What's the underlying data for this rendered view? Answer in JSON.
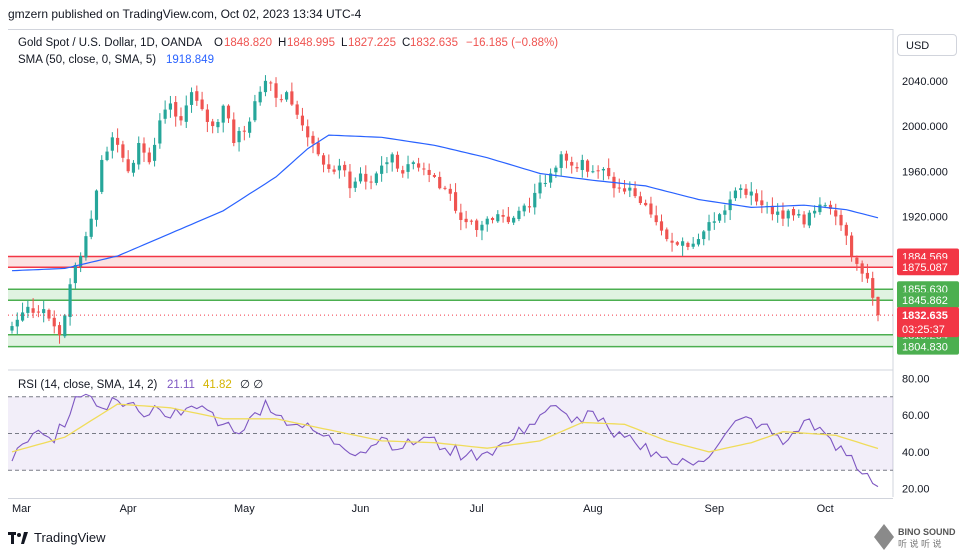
{
  "header": {
    "publish_line": "gmzern published on TradingView.com, Oct 02, 2023 13:34 UTC-4",
    "legend_main": {
      "symbol": "Gold Spot / U.S. Dollar, 1D, OANDA",
      "o_label": "O",
      "o_value": "1848.820",
      "h_label": "H",
      "h_value": "1848.995",
      "l_label": "L",
      "l_value": "1827.225",
      "c_label": "C",
      "c_value": "1832.635",
      "change": "−16.185 (−0.88%)"
    },
    "legend_sma": {
      "label": "SMA (50, close, 0, SMA, 5)",
      "value": "1918.849"
    },
    "legend_rsi": {
      "label": "RSI (14, close, SMA, 14, 2)",
      "value1": "21.11",
      "value2": "41.82",
      "extra": "∅ ∅"
    }
  },
  "currency_button": "USD",
  "footer": {
    "brand": "TradingView"
  },
  "watermark": {
    "line1": "BINO SOUND",
    "line2": "听 说 听 说"
  },
  "colors": {
    "up": "#26a69a",
    "down": "#ef5350",
    "sma": "#2962ff",
    "rsi_line": "#7e57c2",
    "rsi_ma": "#f0dc5a",
    "rsi_band": "#7e57c2",
    "resistance_fill": "#fbd9d9",
    "resistance_line": "#f23645",
    "support_fill": "#d8f0d9",
    "support_line": "#4caf50",
    "current_price_tag": "#f23645"
  },
  "chart_data": [
    {
      "type": "candlestick",
      "title": "Gold Spot / U.S. Dollar, 1D, OANDA",
      "ylim": [
        1785,
        2085
      ],
      "y_ticks": [
        "2040.000",
        "2000.000",
        "1960.000",
        "1920.000"
      ],
      "x_ticks": [
        "Mar",
        "Apr",
        "May",
        "Jun",
        "Jul",
        "Aug",
        "Sep",
        "Oct"
      ],
      "grid": false,
      "anchors": [
        {
          "i": 0,
          "c": 1823
        },
        {
          "i": 3,
          "c": 1840
        },
        {
          "i": 6,
          "c": 1838
        },
        {
          "i": 9,
          "c": 1815
        },
        {
          "i": 11,
          "c": 1860
        },
        {
          "i": 13,
          "c": 1885
        },
        {
          "i": 15,
          "c": 1918
        },
        {
          "i": 17,
          "c": 1970
        },
        {
          "i": 19,
          "c": 1990
        },
        {
          "i": 22,
          "c": 1960
        },
        {
          "i": 24,
          "c": 1985
        },
        {
          "i": 26,
          "c": 1968
        },
        {
          "i": 28,
          "c": 2005
        },
        {
          "i": 30,
          "c": 2020
        },
        {
          "i": 32,
          "c": 2005
        },
        {
          "i": 34,
          "c": 2030
        },
        {
          "i": 36,
          "c": 2015
        },
        {
          "i": 38,
          "c": 2000
        },
        {
          "i": 40,
          "c": 2018
        },
        {
          "i": 42,
          "c": 1985
        },
        {
          "i": 44,
          "c": 1995
        },
        {
          "i": 46,
          "c": 2022
        },
        {
          "i": 48,
          "c": 2040
        },
        {
          "i": 50,
          "c": 2025
        },
        {
          "i": 52,
          "c": 2030
        },
        {
          "i": 54,
          "c": 2010
        },
        {
          "i": 56,
          "c": 1990
        },
        {
          "i": 58,
          "c": 1975
        },
        {
          "i": 60,
          "c": 1962
        },
        {
          "i": 62,
          "c": 1965
        },
        {
          "i": 64,
          "c": 1945
        },
        {
          "i": 66,
          "c": 1958
        },
        {
          "i": 68,
          "c": 1950
        },
        {
          "i": 70,
          "c": 1965
        },
        {
          "i": 72,
          "c": 1975
        },
        {
          "i": 74,
          "c": 1958
        },
        {
          "i": 76,
          "c": 1968
        },
        {
          "i": 78,
          "c": 1962
        },
        {
          "i": 80,
          "c": 1955
        },
        {
          "i": 82,
          "c": 1945
        },
        {
          "i": 84,
          "c": 1925
        },
        {
          "i": 86,
          "c": 1915
        },
        {
          "i": 88,
          "c": 1908
        },
        {
          "i": 90,
          "c": 1918
        },
        {
          "i": 92,
          "c": 1922
        },
        {
          "i": 94,
          "c": 1915
        },
        {
          "i": 96,
          "c": 1925
        },
        {
          "i": 98,
          "c": 1928
        },
        {
          "i": 100,
          "c": 1950
        },
        {
          "i": 102,
          "c": 1958
        },
        {
          "i": 104,
          "c": 1975
        },
        {
          "i": 106,
          "c": 1965
        },
        {
          "i": 108,
          "c": 1970
        },
        {
          "i": 110,
          "c": 1960
        },
        {
          "i": 112,
          "c": 1962
        },
        {
          "i": 114,
          "c": 1945
        },
        {
          "i": 116,
          "c": 1942
        },
        {
          "i": 118,
          "c": 1938
        },
        {
          "i": 120,
          "c": 1930
        },
        {
          "i": 122,
          "c": 1915
        },
        {
          "i": 124,
          "c": 1900
        },
        {
          "i": 126,
          "c": 1895
        },
        {
          "i": 128,
          "c": 1893
        },
        {
          "i": 130,
          "c": 1900
        },
        {
          "i": 132,
          "c": 1915
        },
        {
          "i": 134,
          "c": 1922
        },
        {
          "i": 136,
          "c": 1935
        },
        {
          "i": 138,
          "c": 1945
        },
        {
          "i": 140,
          "c": 1942
        },
        {
          "i": 142,
          "c": 1930
        },
        {
          "i": 144,
          "c": 1922
        },
        {
          "i": 146,
          "c": 1918
        },
        {
          "i": 148,
          "c": 1921
        },
        {
          "i": 150,
          "c": 1913
        },
        {
          "i": 152,
          "c": 1925
        },
        {
          "i": 154,
          "c": 1930
        },
        {
          "i": 156,
          "c": 1920
        },
        {
          "i": 158,
          "c": 1903
        },
        {
          "i": 160,
          "c": 1878
        },
        {
          "i": 162,
          "c": 1865
        },
        {
          "i": 163,
          "c": 1848
        },
        {
          "i": 164,
          "c": 1832.635
        }
      ],
      "last_candle": {
        "o": 1848.82,
        "h": 1848.995,
        "l": 1827.225,
        "c": 1832.635
      },
      "sma_50": [
        {
          "i": 0,
          "v": 1872
        },
        {
          "i": 10,
          "v": 1874
        },
        {
          "i": 20,
          "v": 1885
        },
        {
          "i": 30,
          "v": 1905
        },
        {
          "i": 40,
          "v": 1925
        },
        {
          "i": 50,
          "v": 1955
        },
        {
          "i": 56,
          "v": 1980
        },
        {
          "i": 60,
          "v": 1992
        },
        {
          "i": 70,
          "v": 1990
        },
        {
          "i": 80,
          "v": 1983
        },
        {
          "i": 90,
          "v": 1972
        },
        {
          "i": 100,
          "v": 1958
        },
        {
          "i": 110,
          "v": 1952
        },
        {
          "i": 120,
          "v": 1947
        },
        {
          "i": 130,
          "v": 1935
        },
        {
          "i": 140,
          "v": 1928
        },
        {
          "i": 150,
          "v": 1930
        },
        {
          "i": 158,
          "v": 1926
        },
        {
          "i": 164,
          "v": 1918.849
        }
      ],
      "levels": [
        {
          "kind": "resistance",
          "top": 1884.569,
          "bottom": 1875.087,
          "label_top": "1884.569",
          "label_bottom": "1875.087"
        },
        {
          "kind": "support",
          "top": 1855.63,
          "bottom": 1845.862,
          "label_top": "1855.630",
          "label_bottom": "1845.862"
        },
        {
          "kind": "support",
          "top": 1815.264,
          "bottom": 1804.83,
          "label_top": "1815.264",
          "label_bottom": "1804.830"
        }
      ],
      "current_price": {
        "value": "1832.635",
        "countdown": "03:25:37"
      }
    },
    {
      "type": "line",
      "title": "RSI (14, close, SMA, 14, 2)",
      "ylim": [
        16,
        84
      ],
      "y_ticks": [
        "80.00",
        "60.00",
        "40.00",
        "20.00"
      ],
      "bands": [
        70,
        50,
        30
      ],
      "series": [
        {
          "points": [
            {
              "i": 0,
              "v": 35
            },
            {
              "i": 4,
              "v": 50
            },
            {
              "i": 8,
              "v": 45
            },
            {
              "i": 12,
              "v": 70
            },
            {
              "i": 16,
              "v": 65
            },
            {
              "i": 20,
              "v": 68
            },
            {
              "i": 24,
              "v": 62
            },
            {
              "i": 28,
              "v": 63
            },
            {
              "i": 32,
              "v": 60
            },
            {
              "i": 36,
              "v": 65
            },
            {
              "i": 40,
              "v": 55
            },
            {
              "i": 44,
              "v": 52
            },
            {
              "i": 48,
              "v": 68
            },
            {
              "i": 50,
              "v": 60
            },
            {
              "i": 54,
              "v": 55
            },
            {
              "i": 58,
              "v": 50
            },
            {
              "i": 62,
              "v": 44
            },
            {
              "i": 66,
              "v": 40
            },
            {
              "i": 70,
              "v": 48
            },
            {
              "i": 74,
              "v": 42
            },
            {
              "i": 78,
              "v": 48
            },
            {
              "i": 82,
              "v": 42
            },
            {
              "i": 86,
              "v": 38
            },
            {
              "i": 90,
              "v": 40
            },
            {
              "i": 94,
              "v": 45
            },
            {
              "i": 98,
              "v": 55
            },
            {
              "i": 102,
              "v": 65
            },
            {
              "i": 106,
              "v": 56
            },
            {
              "i": 110,
              "v": 62
            },
            {
              "i": 114,
              "v": 48
            },
            {
              "i": 118,
              "v": 45
            },
            {
              "i": 122,
              "v": 40
            },
            {
              "i": 126,
              "v": 33
            },
            {
              "i": 130,
              "v": 35
            },
            {
              "i": 134,
              "v": 45
            },
            {
              "i": 138,
              "v": 58
            },
            {
              "i": 142,
              "v": 55
            },
            {
              "i": 146,
              "v": 44
            },
            {
              "i": 150,
              "v": 57
            },
            {
              "i": 154,
              "v": 50
            },
            {
              "i": 158,
              "v": 38
            },
            {
              "i": 161,
              "v": 28
            },
            {
              "i": 164,
              "v": 21.11
            }
          ]
        },
        {
          "points": [
            {
              "i": 0,
              "v": 40
            },
            {
              "i": 10,
              "v": 48
            },
            {
              "i": 20,
              "v": 66
            },
            {
              "i": 30,
              "v": 64
            },
            {
              "i": 40,
              "v": 58
            },
            {
              "i": 50,
              "v": 58
            },
            {
              "i": 60,
              "v": 52
            },
            {
              "i": 70,
              "v": 46
            },
            {
              "i": 80,
              "v": 45
            },
            {
              "i": 90,
              "v": 42
            },
            {
              "i": 100,
              "v": 46
            },
            {
              "i": 108,
              "v": 56
            },
            {
              "i": 116,
              "v": 55
            },
            {
              "i": 124,
              "v": 46
            },
            {
              "i": 132,
              "v": 40
            },
            {
              "i": 140,
              "v": 45
            },
            {
              "i": 146,
              "v": 51
            },
            {
              "i": 156,
              "v": 49
            },
            {
              "i": 164,
              "v": 41.82
            }
          ]
        }
      ]
    }
  ]
}
